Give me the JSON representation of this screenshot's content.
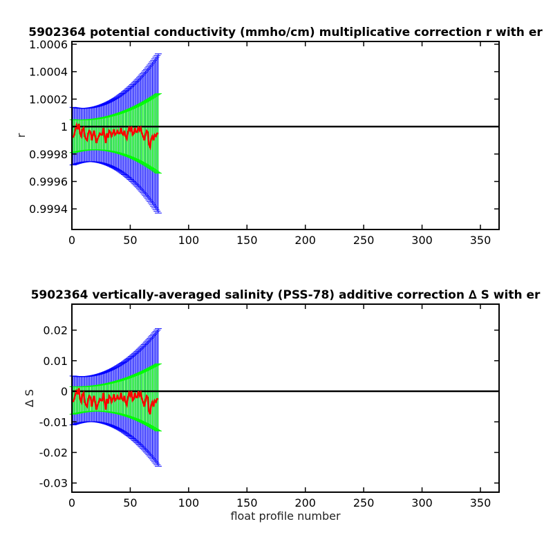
{
  "chart_data": [
    {
      "type": "line",
      "title": "5902364 potential conductivity (mmho/cm) multiplicative correction r with er",
      "xlabel": "",
      "ylabel": "r",
      "xlim": [
        0,
        366
      ],
      "ylim": [
        0.99925,
        1.00062
      ],
      "xticks": [
        0,
        50,
        100,
        150,
        200,
        250,
        300,
        350
      ],
      "xtick_labels": [
        "0",
        "50",
        "100",
        "150",
        "200",
        "250",
        "300",
        "350"
      ],
      "yticks": [
        0.9994,
        0.9996,
        0.9998,
        1,
        1.0002,
        1.0004,
        1.0006
      ],
      "ytick_labels": [
        "0.9994",
        "0.9996",
        "0.9998",
        "1",
        "1.0002",
        "1.0004",
        "1.0006"
      ],
      "reference_line": 1,
      "grid": false,
      "colors": {
        "reference": "#000000",
        "correction": "#ff0000",
        "error_small": "#00ff00",
        "error_large": "#0000ff"
      },
      "profiles": [
        1,
        74
      ],
      "center": {
        "start": 0.99993,
        "mid": 0.99996,
        "end": 0.99995
      },
      "error_small": {
        "start": 0.00012,
        "mid": 7e-05,
        "end": 0.00029
      },
      "error_large": {
        "start": 0.00021,
        "mid": 0.00012,
        "end": 0.00058
      },
      "correction": [
        0.99992,
        0.99994,
        0.99998,
        1.00001,
        0.99998,
        1.00002,
        0.99995,
        0.99993,
        0.99998,
        0.99999,
        0.99993,
        0.99991,
        0.9999,
        0.99995,
        0.99997,
        0.99996,
        0.9999,
        0.99994,
        0.99997,
        0.99993,
        0.99988,
        0.99991,
        0.99993,
        0.99995,
        0.99994,
        0.99994,
        0.99999,
        0.99993,
        0.99988,
        0.99995,
        0.99992,
        0.99997,
        0.99996,
        0.99993,
        0.99995,
        0.99998,
        0.99994,
        0.99995,
        0.99997,
        0.99995,
        0.99995,
        0.99999,
        0.99995,
        0.99994,
        0.99997,
        0.99993,
        0.99991,
        0.99996,
        0.99999,
        0.99997,
        1.0,
        0.99994,
        0.99995,
        0.99999,
        0.99996,
        0.99996,
        1.0,
        0.99997,
        0.99999,
        0.99995,
        0.99993,
        0.9999,
        0.99994,
        0.99997,
        0.99996,
        0.99987,
        0.99985,
        0.99991,
        0.99993,
        0.9999,
        0.99994,
        0.99993,
        0.99995,
        0.99995
      ]
    },
    {
      "type": "line",
      "title": "5902364 vertically-averaged salinity (PSS-78) additive correction ∆ S with er",
      "xlabel": "float profile number",
      "ylabel": "∆ S",
      "xlim": [
        0,
        366
      ],
      "ylim": [
        -0.033,
        0.0285
      ],
      "xticks": [
        0,
        50,
        100,
        150,
        200,
        250,
        300,
        350
      ],
      "xtick_labels": [
        "0",
        "50",
        "100",
        "150",
        "200",
        "250",
        "300",
        "350"
      ],
      "yticks": [
        -0.03,
        -0.02,
        -0.01,
        0,
        0.01,
        0.02
      ],
      "ytick_labels": [
        "-0.03",
        "-0.02",
        "-0.01",
        "0",
        "0.01",
        "0.02"
      ],
      "reference_line": 0,
      "grid": false,
      "colors": {
        "reference": "#000000",
        "correction": "#ff0000",
        "error_small": "#00ff00",
        "error_large": "#0000ff"
      },
      "profiles": [
        1,
        74
      ],
      "center": {
        "start": -0.003,
        "mid": -0.0015,
        "end": -0.002
      },
      "error_small": {
        "start": 0.0045,
        "mid": 0.0025,
        "end": 0.011
      },
      "error_large": {
        "start": 0.008,
        "mid": 0.0045,
        "end": 0.0225
      },
      "correction": [
        -0.0035,
        -0.0025,
        -0.001,
        0.0005,
        -0.001,
        0.001,
        -0.0025,
        -0.0035,
        -0.001,
        -0.0005,
        -0.0035,
        -0.0045,
        -0.005,
        -0.0025,
        -0.0015,
        -0.002,
        -0.005,
        -0.003,
        -0.0015,
        -0.0035,
        -0.006,
        -0.0045,
        -0.0035,
        -0.0025,
        -0.003,
        -0.003,
        -0.0005,
        -0.0035,
        -0.006,
        -0.0025,
        -0.004,
        -0.0015,
        -0.002,
        -0.0035,
        -0.0025,
        -0.001,
        -0.003,
        -0.0025,
        -0.0015,
        -0.0025,
        -0.0025,
        -0.0005,
        -0.0025,
        -0.003,
        -0.0015,
        -0.0035,
        -0.0045,
        -0.002,
        -0.0005,
        -0.0015,
        0.0,
        -0.003,
        -0.0025,
        -0.0005,
        -0.002,
        -0.002,
        0.0,
        -0.0015,
        -0.0005,
        -0.0025,
        -0.0035,
        -0.005,
        -0.003,
        -0.0015,
        -0.002,
        -0.0065,
        -0.0075,
        -0.0045,
        -0.0035,
        -0.005,
        -0.003,
        -0.0035,
        -0.0025,
        -0.0025
      ]
    }
  ]
}
